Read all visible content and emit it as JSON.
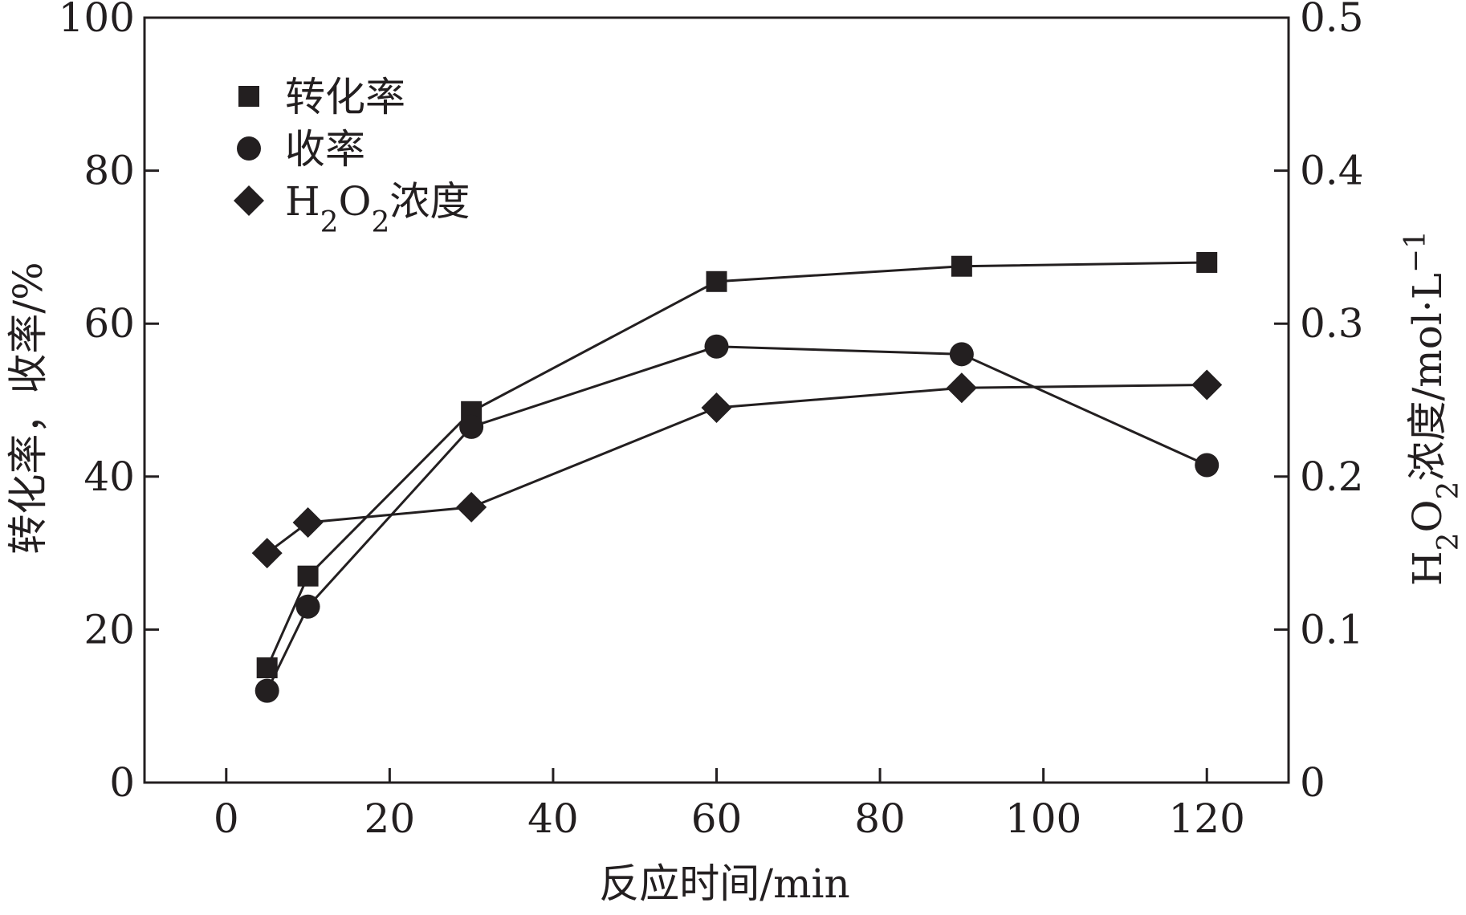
{
  "chart_data": {
    "type": "line",
    "x": [
      5,
      10,
      30,
      60,
      90,
      120
    ],
    "xlabel": "反应时间/min",
    "ylabel_left": "转化率，收率/%",
    "ylabel_right": "H2O2浓度/mol·L−1",
    "xlim": [
      -10,
      130
    ],
    "ylim_left": [
      0,
      100
    ],
    "ylim_right": [
      0,
      0.5
    ],
    "xticks": [
      0,
      20,
      40,
      60,
      80,
      100,
      120
    ],
    "yticks_left": [
      0,
      20,
      40,
      60,
      80,
      100
    ],
    "yticks_right": [
      "0",
      "0.1",
      "0.2",
      "0.3",
      "0.4",
      "0.5"
    ],
    "grid": false,
    "legend_position": "top-left",
    "series": [
      {
        "name": "转化率",
        "marker": "square",
        "axis": "left",
        "values": [
          15,
          27,
          48.5,
          65.5,
          67.5,
          68
        ]
      },
      {
        "name": "收率",
        "marker": "circle",
        "axis": "left",
        "values": [
          12,
          23,
          46.5,
          57,
          56,
          41.5
        ]
      },
      {
        "name": "H2O2浓度",
        "marker": "diamond",
        "axis": "right",
        "values": [
          0.15,
          0.17,
          0.18,
          0.245,
          0.258,
          0.26
        ]
      }
    ],
    "colors": {
      "ink": "#231f20",
      "background": "#ffffff"
    }
  }
}
